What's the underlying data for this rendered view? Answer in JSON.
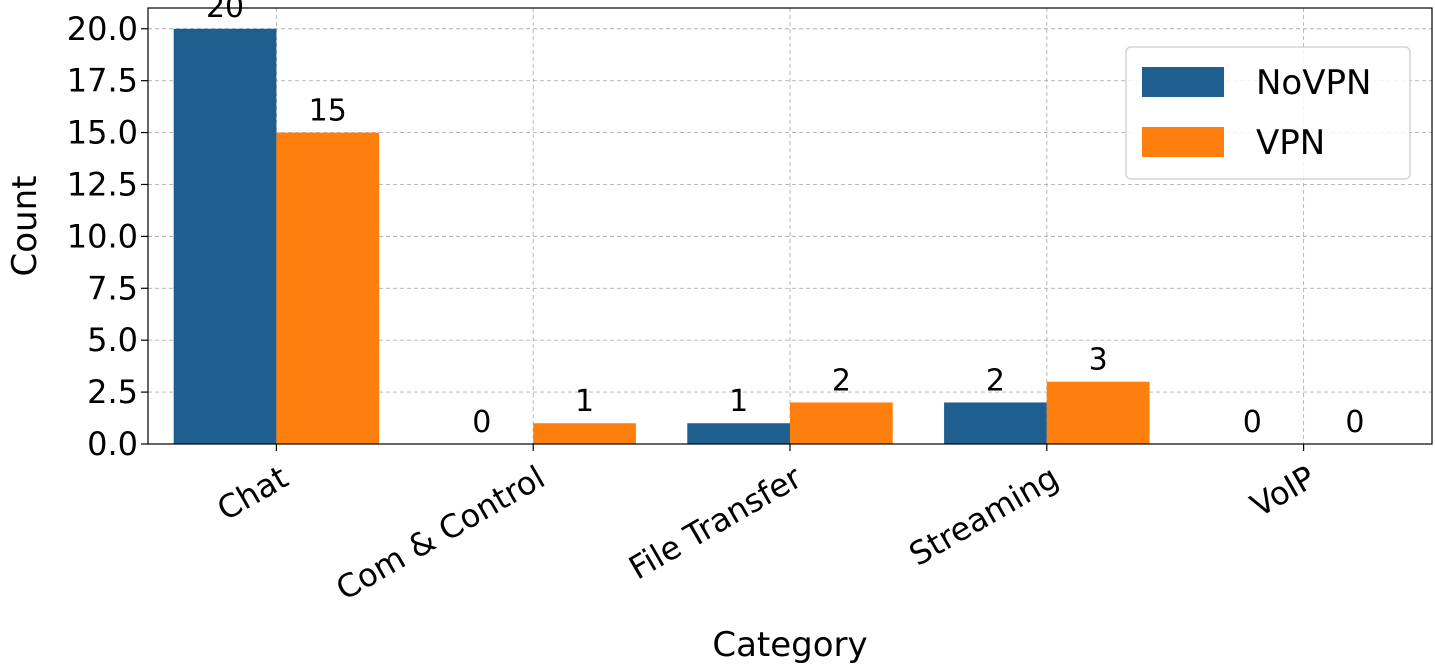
{
  "chart_data": {
    "type": "bar",
    "title": "",
    "xlabel": "Category",
    "ylabel": "Count",
    "categories": [
      "Chat",
      "Com & Control",
      "File Transfer",
      "Streaming",
      "VoIP"
    ],
    "series": [
      {
        "name": "NoVPN",
        "values": [
          20,
          0,
          1,
          2,
          0
        ],
        "data_labels": [
          "20",
          "0",
          "1",
          "2",
          "0"
        ],
        "color": "#1f5f8f"
      },
      {
        "name": "VPN",
        "values": [
          15,
          1,
          2,
          3,
          0
        ],
        "data_labels": [
          "15",
          "1",
          "2",
          "3",
          "0"
        ],
        "color": "#ff7f0e"
      }
    ],
    "ylim": [
      0,
      21
    ],
    "yticks": [
      0,
      2.5,
      5,
      7.5,
      10,
      12.5,
      15,
      17.5,
      20
    ],
    "ytick_labels": [
      "0.0",
      "2.5",
      "5.0",
      "7.5",
      "10.0",
      "12.5",
      "15.0",
      "17.5",
      "20.0"
    ],
    "grid": true,
    "legend_position": "top-right"
  }
}
